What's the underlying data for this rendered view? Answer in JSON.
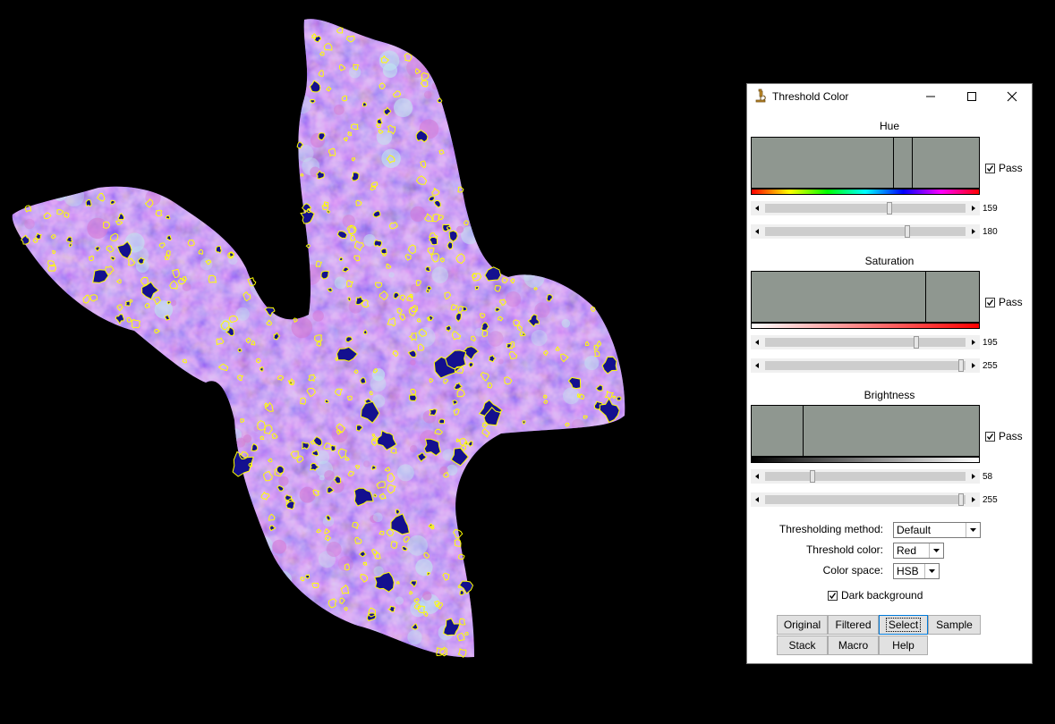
{
  "dialog": {
    "title": "Threshold Color",
    "hue": {
      "label": "Hue",
      "pass_label": "Pass",
      "pass_checked": true,
      "slider_min_value": "159",
      "slider_max_value": "180"
    },
    "saturation": {
      "label": "Saturation",
      "pass_label": "Pass",
      "pass_checked": true,
      "slider_min_value": "195",
      "slider_max_value": "255"
    },
    "brightness": {
      "label": "Brightness",
      "pass_label": "Pass",
      "pass_checked": true,
      "slider_min_value": "58",
      "slider_max_value": "255"
    },
    "thresholding_method": {
      "label": "Thresholding method:",
      "value": "Default"
    },
    "threshold_color": {
      "label": "Threshold color:",
      "value": "Red"
    },
    "color_space": {
      "label": "Color space:",
      "value": "HSB"
    },
    "dark_background": {
      "label": "Dark background",
      "checked": true
    },
    "buttons": {
      "original": "Original",
      "filtered": "Filtered",
      "select": "Select",
      "sample": "Sample",
      "stack": "Stack",
      "macro": "Macro",
      "help": "Help"
    }
  },
  "colors": {
    "background": "#000000",
    "histogram_fill": "#8f9790",
    "tissue_purple": "#7a4fd8",
    "tissue_pink": "#d37bd6",
    "tissue_light": "#bfe6ef",
    "selection_fill": "#14108f",
    "selection_outline": "#ffff00"
  },
  "icons": {
    "app": "microscope-icon",
    "minimize": "minimize-icon",
    "maximize": "maximize-icon",
    "close": "close-icon",
    "checkbox": "checkmark-icon",
    "dropdown": "chevron-down-icon",
    "scroll_left": "scroll-left-arrow-icon",
    "scroll_right": "scroll-right-arrow-icon"
  }
}
